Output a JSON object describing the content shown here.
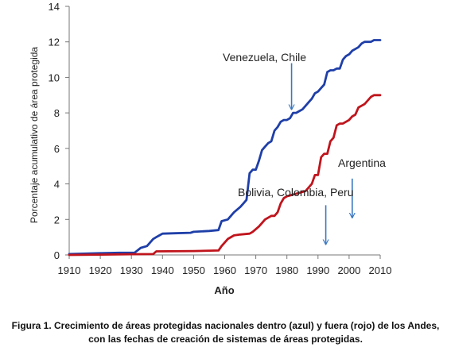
{
  "chart_data": {
    "type": "line",
    "xlabel": "Año",
    "ylabel": "Porcentaje acumulativo de área protegida",
    "xlim": [
      1910,
      2010
    ],
    "ylim": [
      0,
      14
    ],
    "xticks": [
      1910,
      1920,
      1930,
      1940,
      1950,
      1960,
      1970,
      1980,
      1990,
      2000,
      2010
    ],
    "yticks": [
      0,
      2,
      4,
      6,
      8,
      10,
      12,
      14
    ],
    "grid": false,
    "series": [
      {
        "color": "#1f3fa8",
        "x": [
          1910,
          1920,
          1926,
          1931,
          1933,
          1935,
          1937,
          1938,
          1939,
          1940,
          1944,
          1949,
          1950,
          1955,
          1958,
          1959,
          1961,
          1963,
          1965,
          1966,
          1967,
          1968,
          1969,
          1970,
          1971,
          1972,
          1973,
          1974,
          1975,
          1976,
          1977,
          1978,
          1979,
          1980,
          1981,
          1982,
          1983,
          1984,
          1985,
          1986,
          1987,
          1988,
          1989,
          1990,
          1991,
          1992,
          1993,
          1994,
          1995,
          1996,
          1997,
          1998,
          1999,
          2000,
          2001,
          2002,
          2003,
          2004,
          2005,
          2006,
          2007,
          2008,
          2009,
          2010
        ],
        "values": [
          0.05,
          0.1,
          0.12,
          0.12,
          0.4,
          0.5,
          0.9,
          1.0,
          1.1,
          1.2,
          1.22,
          1.25,
          1.3,
          1.35,
          1.4,
          1.9,
          2.0,
          2.4,
          2.7,
          2.9,
          3.1,
          4.6,
          4.8,
          4.8,
          5.3,
          5.9,
          6.1,
          6.3,
          6.4,
          7.0,
          7.2,
          7.5,
          7.6,
          7.6,
          7.7,
          8.0,
          8.0,
          8.1,
          8.2,
          8.4,
          8.6,
          8.8,
          9.1,
          9.2,
          9.4,
          9.6,
          10.3,
          10.4,
          10.4,
          10.5,
          10.5,
          11.0,
          11.2,
          11.3,
          11.5,
          11.6,
          11.7,
          11.9,
          12.0,
          12.0,
          12.0,
          12.1,
          12.1,
          12.1
        ]
      },
      {
        "color": "#c0141c",
        "x": [
          1910,
          1920,
          1930,
          1937,
          1938,
          1950,
          1958,
          1959,
          1961,
          1963,
          1965,
          1968,
          1969,
          1971,
          1973,
          1975,
          1976,
          1977,
          1978,
          1979,
          1980,
          1982,
          1984,
          1986,
          1987,
          1988,
          1989,
          1990,
          1991,
          1992,
          1993,
          1994,
          1995,
          1996,
          1997,
          1998,
          1999,
          2000,
          2001,
          2002,
          2003,
          2004,
          2005,
          2006,
          2007,
          2008,
          2009,
          2010
        ],
        "values": [
          0.0,
          0.02,
          0.04,
          0.05,
          0.2,
          0.22,
          0.25,
          0.5,
          0.9,
          1.1,
          1.15,
          1.2,
          1.3,
          1.6,
          2.0,
          2.2,
          2.2,
          2.4,
          2.9,
          3.2,
          3.3,
          3.4,
          3.5,
          3.6,
          3.8,
          4.0,
          4.5,
          4.5,
          5.5,
          5.7,
          5.7,
          6.4,
          6.6,
          7.3,
          7.4,
          7.4,
          7.5,
          7.6,
          7.8,
          7.9,
          8.3,
          8.4,
          8.5,
          8.7,
          8.9,
          9.0,
          9.0,
          9.0
        ]
      }
    ],
    "annotations": [
      {
        "text": "Venezuela, Chile",
        "arrow_x": 1981.5,
        "arrow_from_y": 10.8,
        "arrow_to_y": 8.2
      },
      {
        "text": "Argentina",
        "arrow_x": 2001,
        "arrow_from_y": 4.3,
        "arrow_to_y": 2.1
      },
      {
        "text": "Bolivia, Colombia, Peru",
        "arrow_x": 1992.5,
        "arrow_from_y": 2.8,
        "arrow_to_y": 0.6
      }
    ]
  },
  "caption": {
    "line1": "Figura 1. Crecimiento de áreas protegidas nacionales dentro (azul) y fuera (rojo) de los Andes,",
    "line2": "con las fechas de creación de sistemas de áreas protegidas."
  }
}
